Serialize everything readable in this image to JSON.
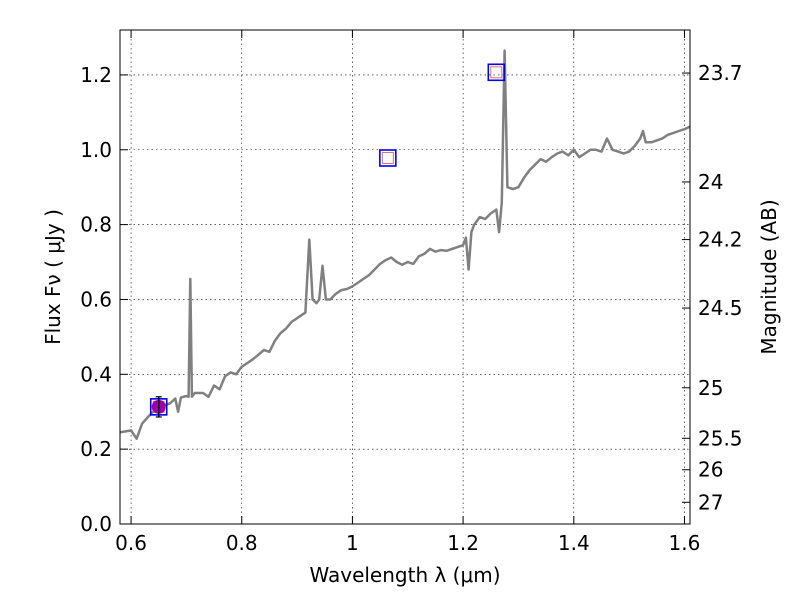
{
  "chart_data": {
    "type": "line",
    "xlabel": "Wavelength  λ (μm)",
    "ylabel": "Flux  Fν  ( μJy )",
    "ylabel_right": "Magnitude (AB)",
    "xlim": [
      0.58,
      1.61
    ],
    "ylim": [
      0.0,
      1.32
    ],
    "x_ticks": [
      0.6,
      0.8,
      1.0,
      1.2,
      1.4,
      1.6
    ],
    "x_tick_labels": [
      "0.6",
      "0.8",
      "1",
      "1.2",
      "1.4",
      "1.6"
    ],
    "y_ticks": [
      0.0,
      0.2,
      0.4,
      0.6,
      0.8,
      1.0,
      1.2
    ],
    "y_tick_labels": [
      "0.0",
      "0.2",
      "0.4",
      "0.6",
      "0.8",
      "1.0",
      "1.2"
    ],
    "right_ticks": [
      {
        "label": "23.7",
        "flux": 1.205
      },
      {
        "label": "24",
        "flux": 0.914
      },
      {
        "label": "24.2",
        "flux": 0.76
      },
      {
        "label": "24.5",
        "flux": 0.577
      },
      {
        "label": "25",
        "flux": 0.364
      },
      {
        "label": "25.5",
        "flux": 0.229
      },
      {
        "label": "26",
        "flux": 0.145
      },
      {
        "label": "27",
        "flux": 0.058
      }
    ],
    "grid": true,
    "colors": {
      "spectrum": "#808080",
      "square": "#0000ff",
      "inner_square": "#e07070",
      "point": "#9900aa"
    },
    "series": [
      {
        "name": "spectrum",
        "style": "line",
        "points": [
          [
            0.58,
            0.245
          ],
          [
            0.6,
            0.25
          ],
          [
            0.61,
            0.228
          ],
          [
            0.62,
            0.268
          ],
          [
            0.63,
            0.285
          ],
          [
            0.64,
            0.3
          ],
          [
            0.65,
            0.31
          ],
          [
            0.66,
            0.318
          ],
          [
            0.67,
            0.322
          ],
          [
            0.68,
            0.335
          ],
          [
            0.685,
            0.3
          ],
          [
            0.69,
            0.338
          ],
          [
            0.7,
            0.342
          ],
          [
            0.704,
            0.34
          ],
          [
            0.707,
            0.655
          ],
          [
            0.71,
            0.34
          ],
          [
            0.715,
            0.35
          ],
          [
            0.73,
            0.35
          ],
          [
            0.74,
            0.34
          ],
          [
            0.75,
            0.37
          ],
          [
            0.76,
            0.36
          ],
          [
            0.77,
            0.395
          ],
          [
            0.78,
            0.405
          ],
          [
            0.79,
            0.4
          ],
          [
            0.8,
            0.42
          ],
          [
            0.81,
            0.43
          ],
          [
            0.82,
            0.44
          ],
          [
            0.83,
            0.452
          ],
          [
            0.84,
            0.465
          ],
          [
            0.85,
            0.46
          ],
          [
            0.86,
            0.49
          ],
          [
            0.87,
            0.51
          ],
          [
            0.88,
            0.522
          ],
          [
            0.89,
            0.54
          ],
          [
            0.9,
            0.55
          ],
          [
            0.91,
            0.56
          ],
          [
            0.915,
            0.565
          ],
          [
            0.922,
            0.76
          ],
          [
            0.928,
            0.6
          ],
          [
            0.935,
            0.59
          ],
          [
            0.94,
            0.6
          ],
          [
            0.946,
            0.69
          ],
          [
            0.952,
            0.6
          ],
          [
            0.96,
            0.6
          ],
          [
            0.97,
            0.615
          ],
          [
            0.98,
            0.625
          ],
          [
            0.99,
            0.628
          ],
          [
            1.0,
            0.635
          ],
          [
            1.01,
            0.645
          ],
          [
            1.02,
            0.655
          ],
          [
            1.03,
            0.665
          ],
          [
            1.04,
            0.68
          ],
          [
            1.05,
            0.695
          ],
          [
            1.06,
            0.705
          ],
          [
            1.07,
            0.712
          ],
          [
            1.08,
            0.7
          ],
          [
            1.09,
            0.693
          ],
          [
            1.1,
            0.7
          ],
          [
            1.11,
            0.695
          ],
          [
            1.12,
            0.715
          ],
          [
            1.13,
            0.722
          ],
          [
            1.14,
            0.735
          ],
          [
            1.15,
            0.728
          ],
          [
            1.16,
            0.732
          ],
          [
            1.17,
            0.73
          ],
          [
            1.18,
            0.735
          ],
          [
            1.19,
            0.74
          ],
          [
            1.2,
            0.745
          ],
          [
            1.205,
            0.765
          ],
          [
            1.21,
            0.68
          ],
          [
            1.215,
            0.78
          ],
          [
            1.22,
            0.8
          ],
          [
            1.23,
            0.82
          ],
          [
            1.24,
            0.815
          ],
          [
            1.25,
            0.83
          ],
          [
            1.26,
            0.84
          ],
          [
            1.265,
            0.78
          ],
          [
            1.27,
            0.86
          ],
          [
            1.275,
            1.265
          ],
          [
            1.28,
            0.9
          ],
          [
            1.29,
            0.895
          ],
          [
            1.3,
            0.9
          ],
          [
            1.31,
            0.925
          ],
          [
            1.32,
            0.945
          ],
          [
            1.33,
            0.96
          ],
          [
            1.34,
            0.975
          ],
          [
            1.35,
            0.968
          ],
          [
            1.36,
            0.98
          ],
          [
            1.37,
            0.99
          ],
          [
            1.38,
            0.995
          ],
          [
            1.39,
            0.985
          ],
          [
            1.4,
            1.0
          ],
          [
            1.41,
            0.98
          ],
          [
            1.42,
            0.99
          ],
          [
            1.43,
            1.0
          ],
          [
            1.44,
            1.0
          ],
          [
            1.45,
            0.995
          ],
          [
            1.46,
            1.03
          ],
          [
            1.47,
            1.0
          ],
          [
            1.48,
            0.995
          ],
          [
            1.49,
            0.99
          ],
          [
            1.5,
            0.995
          ],
          [
            1.51,
            1.01
          ],
          [
            1.52,
            1.03
          ],
          [
            1.525,
            1.05
          ],
          [
            1.53,
            1.02
          ],
          [
            1.54,
            1.02
          ],
          [
            1.55,
            1.025
          ],
          [
            1.56,
            1.03
          ],
          [
            1.57,
            1.04
          ],
          [
            1.58,
            1.045
          ],
          [
            1.59,
            1.05
          ],
          [
            1.6,
            1.055
          ],
          [
            1.61,
            1.062
          ]
        ]
      },
      {
        "name": "photometry-squares",
        "style": "square",
        "points": [
          [
            0.65,
            0.313
          ],
          [
            1.064,
            0.978
          ],
          [
            1.26,
            1.207
          ]
        ]
      },
      {
        "name": "measured-point",
        "style": "point",
        "points": [
          [
            0.65,
            0.313
          ]
        ],
        "error": [
          0.027
        ]
      }
    ]
  }
}
